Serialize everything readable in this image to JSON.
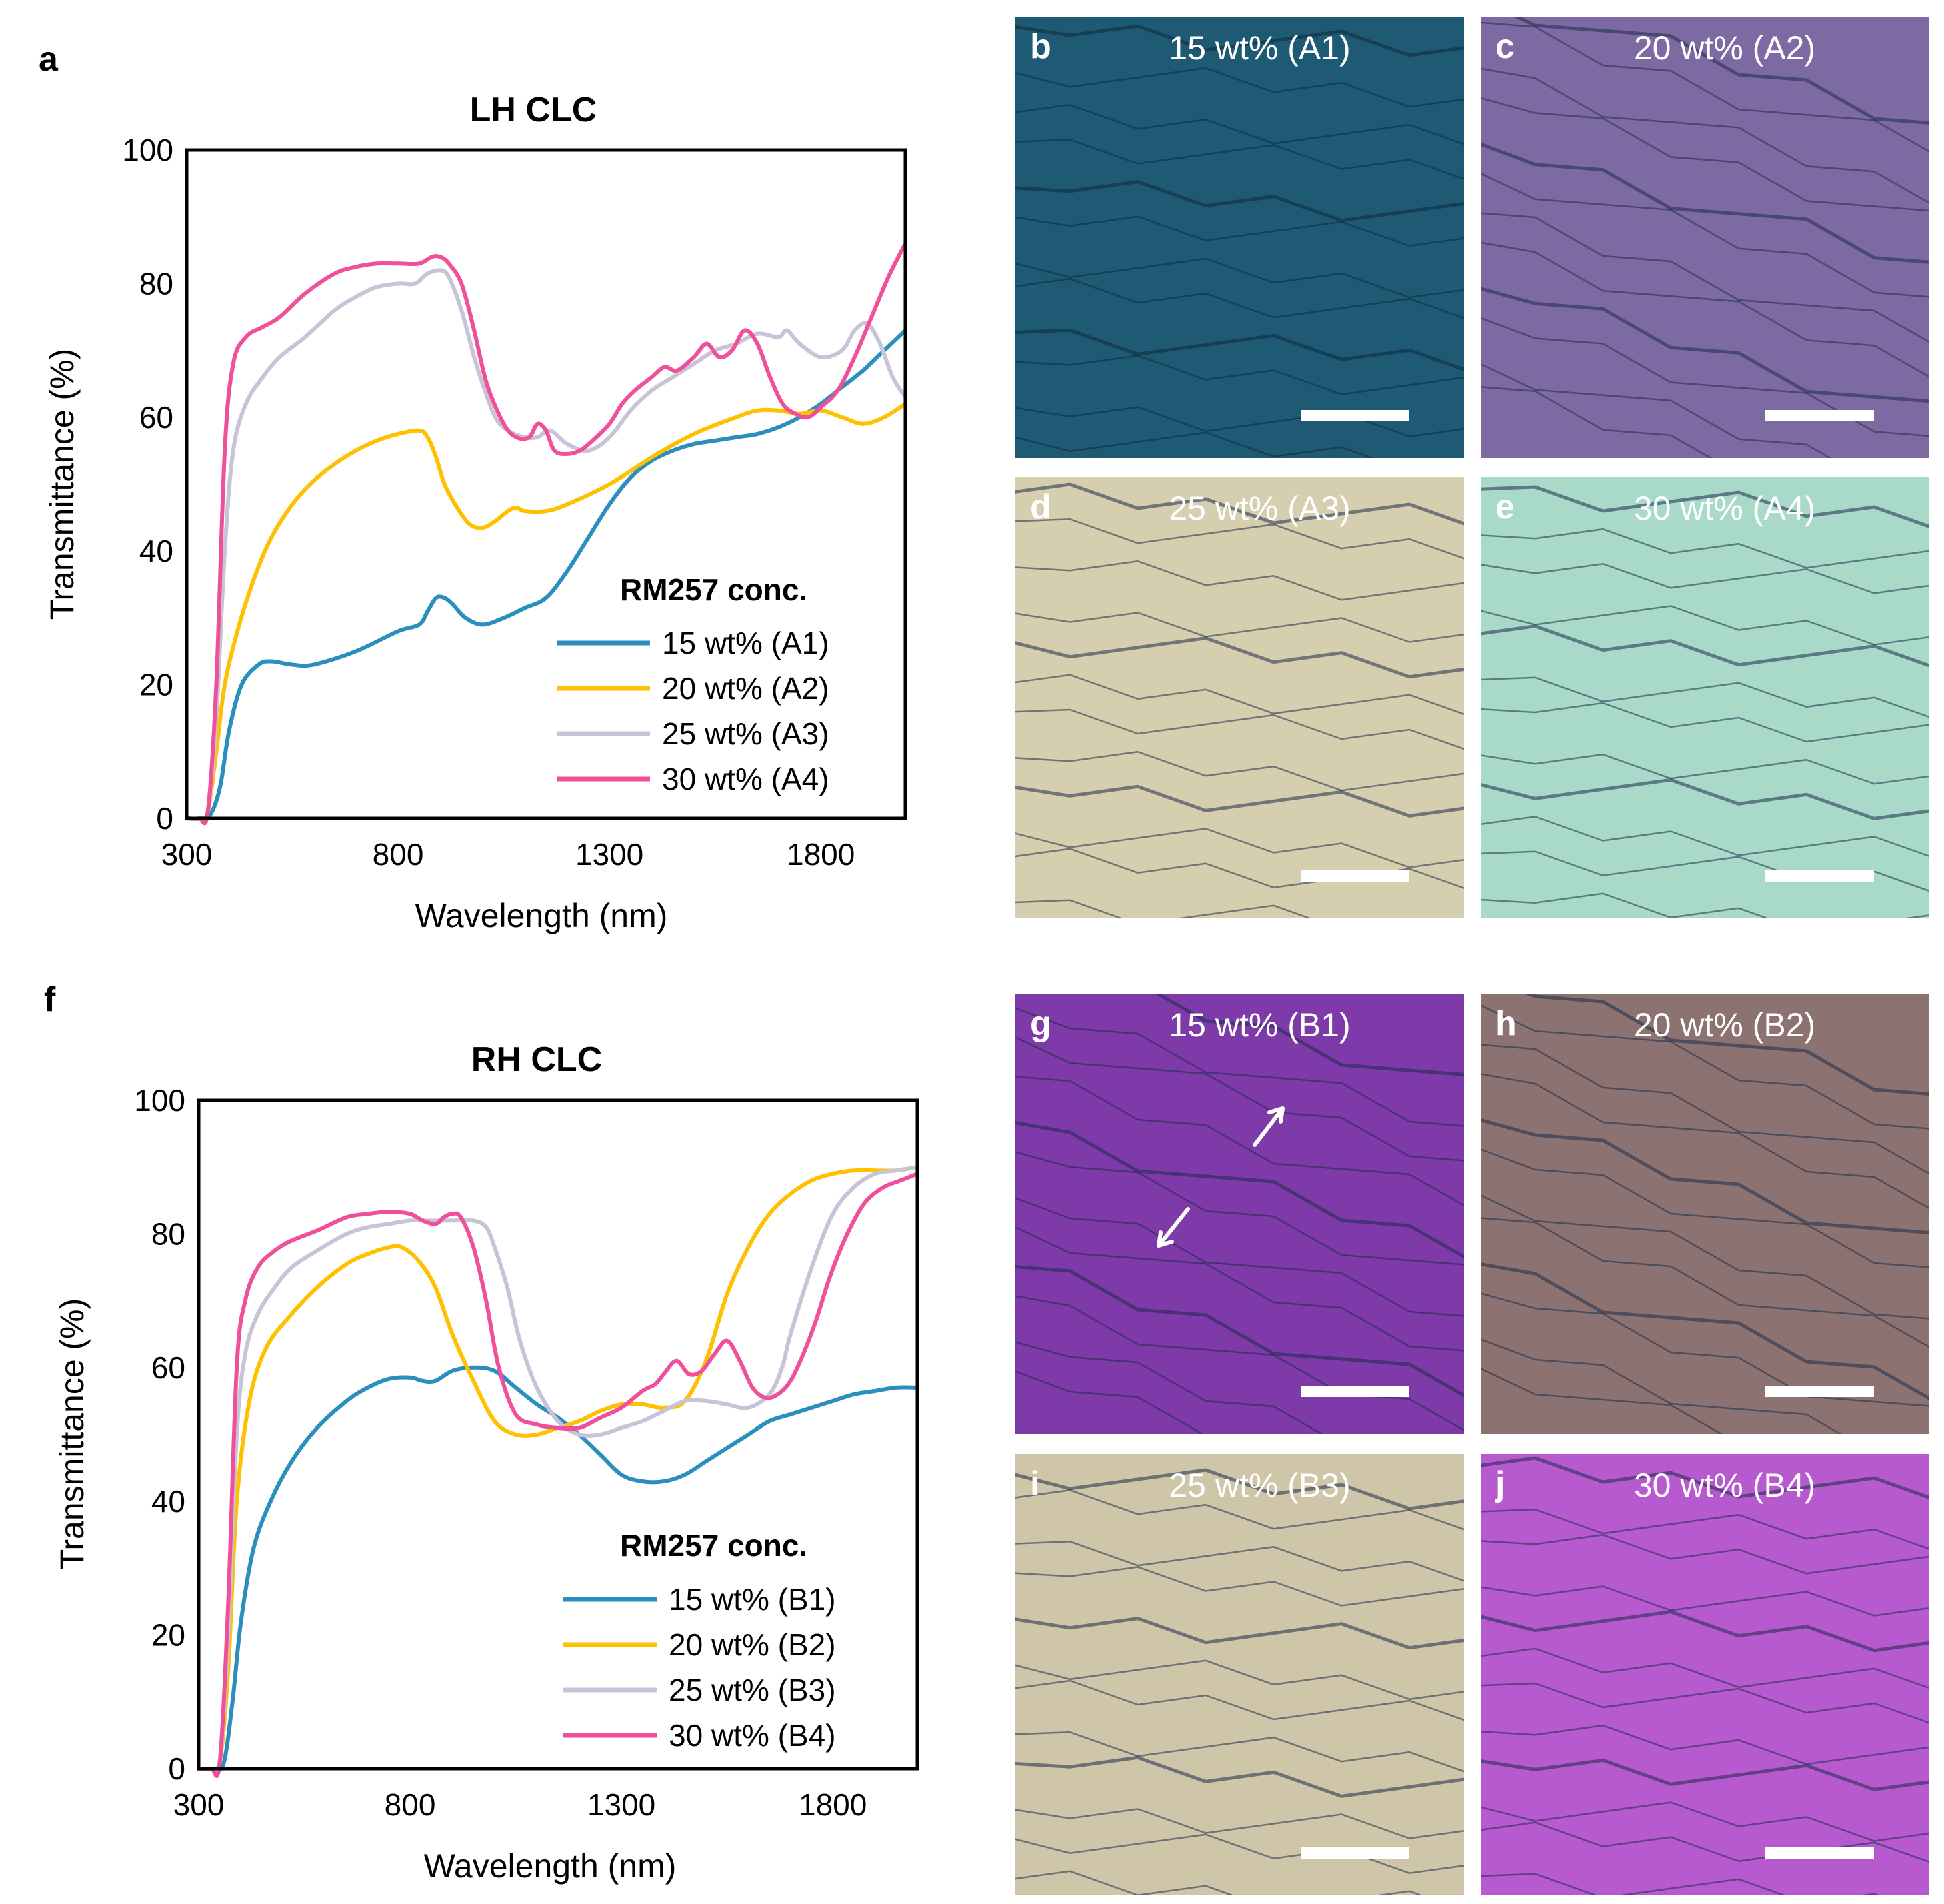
{
  "colors": {
    "A1": "#2a8fbd",
    "A2": "#ffc000",
    "A3": "#c9c3d8",
    "A4": "#f0509a",
    "scalebar": "#ffffff"
  },
  "micrograph_colors": {
    "b": "#1f5a74",
    "c": "#7e6aa3",
    "d": "#d5cfb0",
    "e": "#a9dac9",
    "g": "#7d3aa8",
    "h": "#8c7372",
    "i": "#cfc6aa",
    "j": "#b75ad0"
  },
  "chart_data": [
    {
      "panel": "a",
      "type": "line",
      "title": "LH CLC",
      "xlabel": "Wavelength (nm)",
      "ylabel": "Transmittance (%)",
      "xlim": [
        300,
        2000
      ],
      "ylim": [
        0,
        100
      ],
      "xticks": [
        "300",
        "800",
        "1300",
        "1800"
      ],
      "yticks": [
        "0",
        "20",
        "40",
        "60",
        "80",
        "100"
      ],
      "legend_title": "RM257 conc.",
      "legend_position": "bottom-right",
      "series": [
        {
          "name": "15 wt% (A1)",
          "color_key": "A1",
          "x": [
            300,
            340,
            360,
            380,
            400,
            430,
            470,
            500,
            550,
            600,
            700,
            800,
            850,
            870,
            890,
            910,
            930,
            960,
            1000,
            1050,
            1100,
            1150,
            1200,
            1250,
            1300,
            1350,
            1400,
            1450,
            1500,
            1550,
            1600,
            1650,
            1700,
            1750,
            1800,
            1850,
            1900,
            1950,
            2000
          ],
          "y": [
            0,
            0,
            1,
            5,
            13,
            20,
            23,
            23.5,
            23,
            23,
            25,
            28,
            29,
            31,
            33,
            33,
            32,
            30,
            29,
            30,
            31.5,
            33,
            37,
            42,
            47,
            51,
            53.5,
            55,
            56,
            56.5,
            57,
            57.5,
            58.5,
            60,
            62,
            64.5,
            67,
            70,
            73
          ]
        },
        {
          "name": "20 wt% (A2)",
          "color_key": "A2",
          "x": [
            300,
            330,
            350,
            370,
            390,
            420,
            460,
            500,
            550,
            600,
            650,
            700,
            750,
            800,
            850,
            870,
            890,
            910,
            940,
            970,
            1000,
            1030,
            1060,
            1080,
            1100,
            1150,
            1200,
            1300,
            1400,
            1500,
            1600,
            1650,
            1700,
            1750,
            1800,
            1850,
            1900,
            1950,
            2000
          ],
          "y": [
            0,
            0,
            1,
            10,
            20,
            28,
            36,
            42,
            47,
            50.5,
            53,
            55,
            56.5,
            57.5,
            58,
            57,
            54,
            50,
            46.5,
            44,
            43.5,
            44.5,
            46,
            46.5,
            46,
            46,
            47,
            50,
            54,
            57.5,
            60,
            61,
            61,
            60.5,
            61,
            60,
            59,
            60,
            62
          ]
        },
        {
          "name": "25 wt% (A3)",
          "color_key": "A3",
          "x": [
            300,
            330,
            350,
            370,
            390,
            410,
            440,
            480,
            520,
            580,
            650,
            700,
            750,
            800,
            840,
            870,
            900,
            920,
            950,
            980,
            1000,
            1030,
            1060,
            1100,
            1130,
            1160,
            1200,
            1250,
            1300,
            1350,
            1400,
            1450,
            1500,
            1550,
            1600,
            1650,
            1700,
            1720,
            1750,
            1800,
            1850,
            1880,
            1910,
            1940,
            1970,
            2000
          ],
          "y": [
            0,
            0,
            1,
            15,
            40,
            55,
            62,
            66,
            69,
            72,
            76,
            78,
            79.5,
            80,
            80,
            81.5,
            82,
            81,
            76,
            69,
            65,
            60,
            58,
            57,
            57,
            58,
            56,
            55,
            57,
            61,
            64,
            66,
            68,
            70,
            71,
            72.5,
            72,
            73,
            71,
            69,
            70,
            73,
            74,
            71,
            66,
            63
          ]
        },
        {
          "name": "30 wt% (A4)",
          "color_key": "A4",
          "x": [
            300,
            330,
            350,
            370,
            390,
            410,
            440,
            480,
            520,
            580,
            650,
            700,
            750,
            800,
            850,
            880,
            900,
            920,
            950,
            980,
            1010,
            1050,
            1080,
            1110,
            1130,
            1150,
            1170,
            1200,
            1230,
            1260,
            1300,
            1330,
            1360,
            1400,
            1430,
            1460,
            1500,
            1530,
            1560,
            1590,
            1620,
            1650,
            1680,
            1710,
            1740,
            1770,
            1800,
            1840,
            1880,
            1920,
            1960,
            2000
          ],
          "y": [
            0,
            0,
            1,
            20,
            55,
            68,
            72,
            73.5,
            75,
            78.5,
            81.5,
            82.5,
            83,
            83,
            83,
            84,
            84,
            83,
            80,
            73,
            65,
            59,
            57,
            57,
            59,
            58,
            55,
            54.5,
            55,
            56.5,
            59,
            62,
            64,
            66,
            67.5,
            67,
            69,
            71,
            69,
            70,
            73,
            71,
            66,
            62,
            60.5,
            60,
            61.5,
            64,
            69,
            75,
            81,
            86
          ]
        }
      ]
    },
    {
      "panel": "f",
      "type": "line",
      "title": "RH CLC",
      "xlabel": "Wavelength (nm)",
      "ylabel": "Transmittance (%)",
      "xlim": [
        300,
        2000
      ],
      "ylim": [
        0,
        100
      ],
      "xticks": [
        "300",
        "800",
        "1300",
        "1800"
      ],
      "yticks": [
        "0",
        "20",
        "40",
        "60",
        "80",
        "100"
      ],
      "legend_title": "RM257 conc.",
      "legend_position": "bottom-right",
      "series": [
        {
          "name": "15 wt% (B1)",
          "color_key": "A1",
          "x": [
            300,
            340,
            360,
            380,
            400,
            430,
            470,
            520,
            580,
            650,
            700,
            750,
            800,
            830,
            860,
            900,
            950,
            1000,
            1050,
            1100,
            1150,
            1200,
            1250,
            1300,
            1350,
            1400,
            1450,
            1500,
            1550,
            1600,
            1650,
            1700,
            1750,
            1800,
            1850,
            1900,
            1950,
            2000
          ],
          "y": [
            0,
            0,
            1,
            10,
            22,
            33,
            40,
            46,
            51,
            55,
            57,
            58.3,
            58.5,
            58,
            58,
            59.5,
            60,
            59.5,
            57,
            54.5,
            52.5,
            50,
            47,
            44,
            43,
            43,
            44,
            46,
            48,
            50,
            52,
            53,
            54,
            55,
            56,
            56.5,
            57,
            57
          ]
        },
        {
          "name": "20 wt% (B2)",
          "color_key": "A2",
          "x": [
            300,
            330,
            350,
            370,
            390,
            420,
            460,
            520,
            580,
            650,
            700,
            750,
            780,
            820,
            860,
            900,
            950,
            1000,
            1050,
            1100,
            1150,
            1200,
            1250,
            1300,
            1350,
            1400,
            1450,
            1500,
            1550,
            1600,
            1650,
            1700,
            1750,
            1800,
            1850,
            1900,
            1950,
            2000
          ],
          "y": [
            0,
            0,
            1,
            15,
            40,
            55,
            63,
            68,
            72,
            75.5,
            77,
            78,
            78,
            76,
            72,
            65,
            58,
            52,
            50,
            50,
            51,
            52,
            53.5,
            54.5,
            54.5,
            54,
            55,
            61,
            71,
            78,
            83,
            86,
            88,
            89,
            89.5,
            89.5,
            89.5,
            90
          ]
        },
        {
          "name": "25 wt% (B3)",
          "color_key": "A3",
          "x": [
            300,
            330,
            350,
            370,
            390,
            410,
            440,
            480,
            520,
            580,
            650,
            700,
            750,
            800,
            850,
            900,
            950,
            980,
            1000,
            1030,
            1060,
            1100,
            1150,
            1200,
            1250,
            1300,
            1350,
            1400,
            1450,
            1500,
            1550,
            1600,
            1650,
            1680,
            1700,
            1750,
            1800,
            1850,
            1900,
            1950,
            2000
          ],
          "y": [
            0,
            0,
            1,
            20,
            50,
            62,
            68,
            72,
            75,
            77.5,
            80,
            81,
            81.5,
            82,
            82,
            82,
            82,
            81,
            78,
            72,
            64,
            57,
            52,
            50,
            50,
            51,
            52,
            53.5,
            55,
            55,
            54.5,
            54,
            56,
            60,
            65,
            75,
            83,
            87,
            89,
            89.5,
            90
          ]
        },
        {
          "name": "30 wt% (B4)",
          "color_key": "A4",
          "x": [
            300,
            330,
            350,
            370,
            390,
            410,
            440,
            480,
            520,
            580,
            650,
            700,
            750,
            800,
            830,
            860,
            880,
            900,
            920,
            950,
            980,
            1010,
            1050,
            1100,
            1150,
            1200,
            1250,
            1300,
            1350,
            1380,
            1400,
            1430,
            1460,
            1490,
            1520,
            1550,
            1580,
            1610,
            1640,
            1670,
            1700,
            1730,
            1760,
            1790,
            1820,
            1850,
            1880,
            1920,
            1960,
            2000
          ],
          "y": [
            0,
            0,
            1,
            25,
            60,
            70,
            75,
            77.5,
            79,
            80.5,
            82.5,
            83,
            83.3,
            83,
            82,
            81.5,
            82.5,
            83,
            82.5,
            78,
            70,
            60,
            53,
            51.5,
            51,
            51,
            52.5,
            54,
            56.5,
            57.5,
            59,
            61,
            59,
            59.5,
            62,
            64,
            61,
            57,
            55.5,
            56,
            58,
            62,
            67,
            73,
            78,
            82,
            85,
            87,
            88,
            89
          ]
        }
      ]
    }
  ],
  "panel_labels": {
    "a": "a",
    "f": "f"
  },
  "micrographs": [
    {
      "id": "b",
      "letter": "b",
      "caption": "15 wt% (A1)"
    },
    {
      "id": "c",
      "letter": "c",
      "caption": "20 wt% (A2)"
    },
    {
      "id": "d",
      "letter": "d",
      "caption": "25 wt% (A3)"
    },
    {
      "id": "e",
      "letter": "e",
      "caption": "30 wt% (A4)"
    },
    {
      "id": "g",
      "letter": "g",
      "caption": "15 wt% (B1)"
    },
    {
      "id": "h",
      "letter": "h",
      "caption": "20 wt% (B2)"
    },
    {
      "id": "i",
      "letter": "i",
      "caption": "25 wt% (B3)"
    },
    {
      "id": "j",
      "letter": "j",
      "caption": "30 wt% (B4)"
    }
  ]
}
